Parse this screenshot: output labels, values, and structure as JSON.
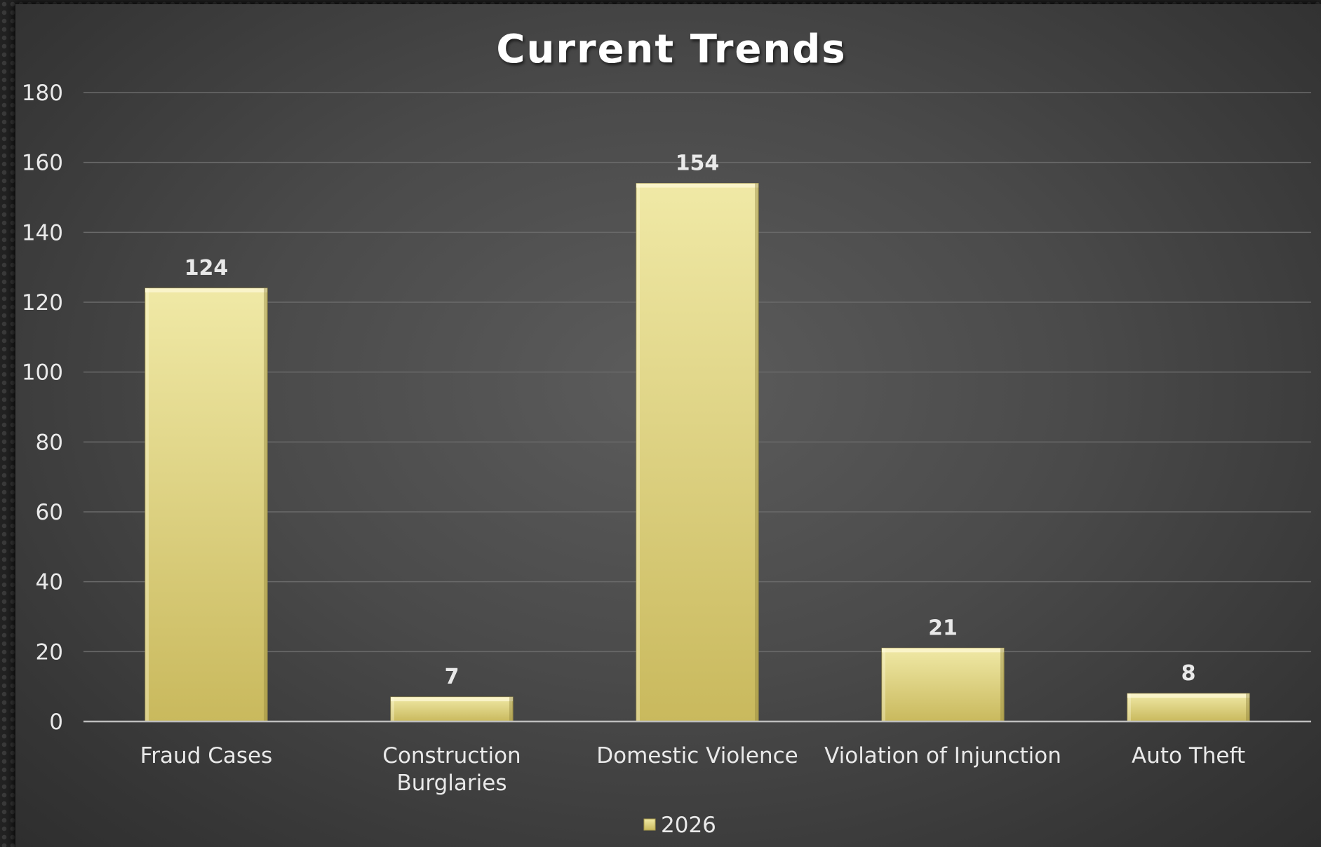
{
  "chart_data": {
    "type": "bar",
    "title": "Current Trends",
    "categories": [
      [
        "Fraud Cases"
      ],
      [
        "Construction",
        "Burglaries"
      ],
      [
        "Domestic Violence"
      ],
      [
        "Violation of Injunction"
      ],
      [
        "Auto Theft"
      ]
    ],
    "series": [
      {
        "name": "2026",
        "values": [
          124,
          7,
          154,
          21,
          8
        ]
      }
    ],
    "ylim": [
      0,
      180
    ],
    "yticks": [
      0,
      20,
      40,
      60,
      80,
      100,
      120,
      140,
      160,
      180
    ],
    "grid": true,
    "legend": "bottom",
    "colors": {
      "bar_top": "#f0e9a6",
      "bar_bottom": "#c9b95d",
      "grid": "#6a6a6a",
      "axis": "#bdbdbd"
    }
  }
}
